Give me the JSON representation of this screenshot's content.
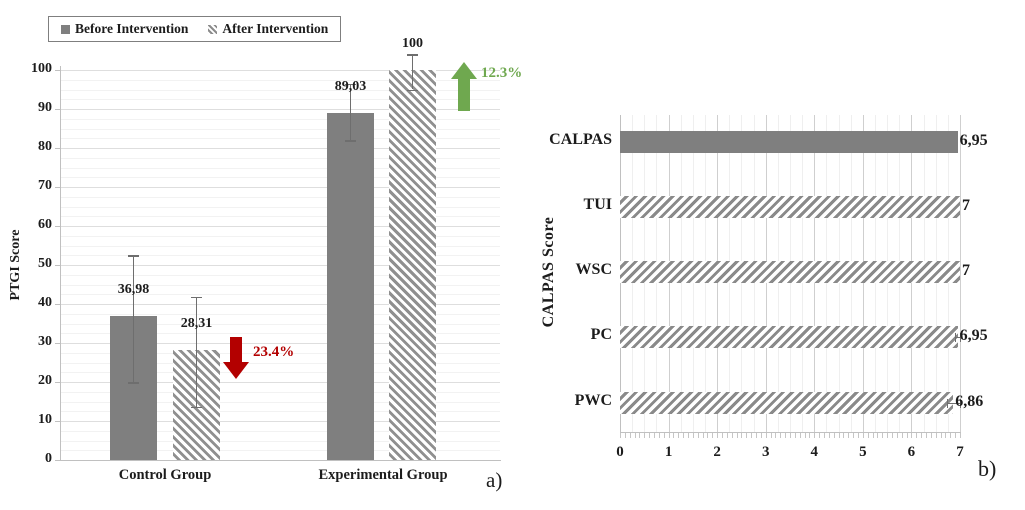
{
  "colors": {
    "bar_gray": "#7f7f7f",
    "hatch_gray": "#8c8c8c",
    "major_grid": "#dedede",
    "minor_grid": "#f2f2f2",
    "axis_line": "#c0c0c0",
    "error_bar": "#6e6e6e",
    "decrease_red": "#b30000",
    "increase_green": "#6fa84f",
    "text": "#1c1c1c"
  },
  "chart_data": [
    {
      "id": "ptgi-bar-chart",
      "type": "bar",
      "panel_label": "a)",
      "ylabel": "PTGI Score",
      "ylim": [
        0,
        100
      ],
      "y_tick_step": 10,
      "grid": "horizontal major+minor",
      "legend_position": "top",
      "categories": [
        "Control Group",
        "Experimental Group"
      ],
      "series": [
        {
          "name": "Before Intervention",
          "pattern": "solid",
          "values": [
            36.98,
            89.03
          ],
          "value_labels": [
            "36,98",
            "89,03"
          ],
          "error_low": [
            20,
            82
          ],
          "error_high": [
            52.5,
            96.5
          ]
        },
        {
          "name": "After Intervention",
          "pattern": "hatch",
          "values": [
            28.31,
            100
          ],
          "value_labels": [
            "28,31",
            "100"
          ],
          "error_low": [
            13.6,
            95
          ],
          "error_high": [
            41.8,
            104
          ]
        }
      ],
      "annotations": [
        {
          "text": "23.4%",
          "direction": "down",
          "color": "#b30000",
          "target": "Control Group"
        },
        {
          "text": "12.3%",
          "direction": "up",
          "color": "#6fa84f",
          "target": "Experimental Group"
        }
      ]
    },
    {
      "id": "calpas-bar-chart",
      "type": "horizontal-bar",
      "panel_label": "b)",
      "axis_label": "CALPAS Score",
      "xlim": [
        0,
        7
      ],
      "x_ticks": [
        0,
        1,
        2,
        3,
        4,
        5,
        6,
        7
      ],
      "grid": "vertical major+minor",
      "categories": [
        "CALPAS",
        "TUI",
        "WSC",
        "PC",
        "PWC"
      ],
      "values": [
        6.95,
        7,
        7,
        6.95,
        6.86
      ],
      "value_labels": [
        "6,95",
        "7",
        "7",
        "6,95",
        "6,86"
      ],
      "patterns": [
        "solid",
        "hatch",
        "hatch",
        "hatch",
        "hatch"
      ],
      "error": [
        0,
        0,
        0,
        0.06,
        0.13
      ]
    }
  ]
}
